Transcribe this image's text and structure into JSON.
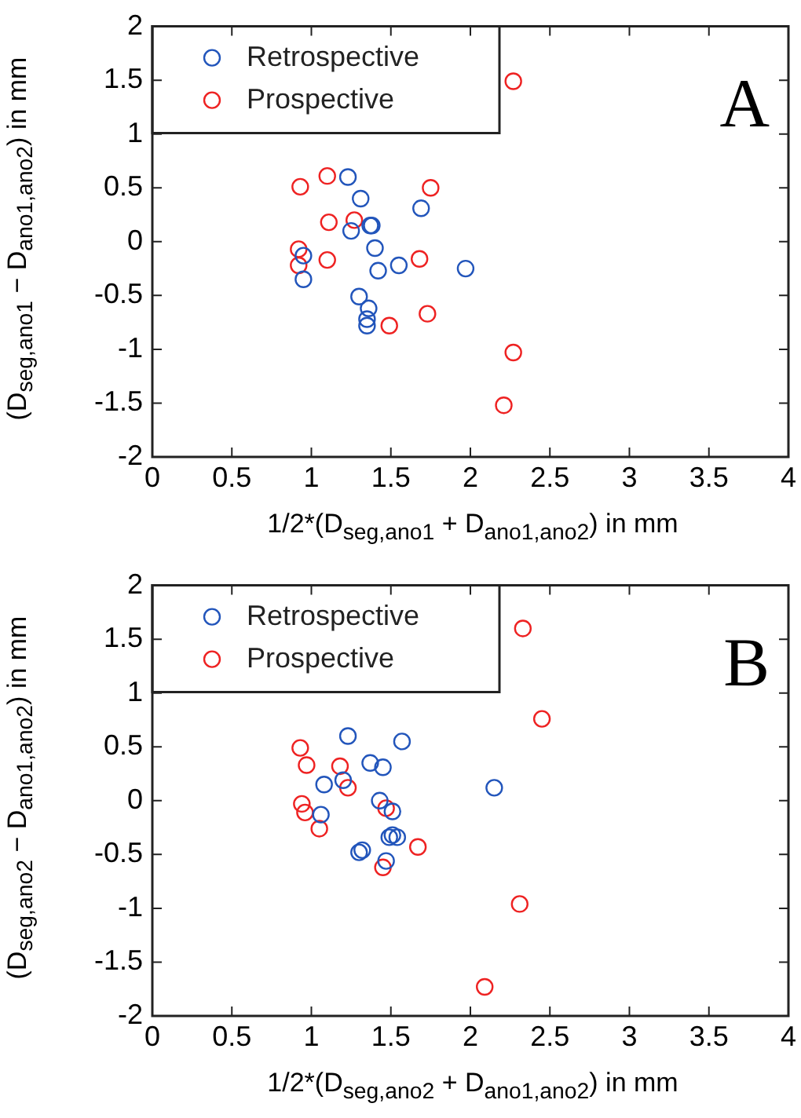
{
  "chart_data": [
    {
      "type": "scatter",
      "xlabel": "1/2*(D$_{seg,ano1}$ + D$_{ano1,ano2}$) in mm",
      "ylabel": "(D$_{seg,ano1}$ − D$_{ano1,ano2}$) in mm",
      "annotations": [
        "A"
      ],
      "legend": "top left",
      "marker": "circle",
      "grid": false,
      "xlim": [
        0,
        4
      ],
      "xticks": [
        0,
        0.5,
        1,
        1.5,
        2,
        2.5,
        3,
        3.5,
        4
      ],
      "ylim": [
        -2,
        2
      ],
      "yticks": [
        -2,
        -1.5,
        -1,
        -0.5,
        0,
        0.5,
        1,
        1.5,
        2
      ],
      "series": [
        {
          "name": "Retrospective",
          "color": "#2255bb",
          "x": [
            1.23,
            1.31,
            1.69,
            1.25,
            1.37,
            1.38,
            1.4,
            0.95,
            0.95,
            1.55,
            1.42,
            1.97,
            1.3,
            1.36,
            1.35,
            1.35
          ],
          "values": [
            0.6,
            0.4,
            0.31,
            0.1,
            0.15,
            0.15,
            -0.06,
            -0.13,
            -0.35,
            -0.22,
            -0.27,
            -0.25,
            -0.51,
            -0.62,
            -0.72,
            -0.78
          ]
        },
        {
          "name": "Prospective",
          "color": "#ee2222",
          "x": [
            2.27,
            0.93,
            1.1,
            1.75,
            1.11,
            1.27,
            0.92,
            0.92,
            1.1,
            1.68,
            1.49,
            1.73,
            2.27,
            2.21
          ],
          "values": [
            1.49,
            0.51,
            0.61,
            0.5,
            0.18,
            0.2,
            -0.07,
            -0.22,
            -0.17,
            -0.16,
            -0.78,
            -0.67,
            -1.03,
            -1.52
          ]
        }
      ]
    },
    {
      "type": "scatter",
      "xlabel": "1/2*(D$_{seg,ano2}$ + D$_{ano1,ano2}$) in mm",
      "ylabel": "(D$_{seg,ano2}$ − D$_{ano1,ano2}$) in mm",
      "annotations": [
        "B"
      ],
      "legend": "top left",
      "marker": "circle",
      "grid": false,
      "xlim": [
        0,
        4
      ],
      "xticks": [
        0,
        0.5,
        1,
        1.5,
        2,
        2.5,
        3,
        3.5,
        4
      ],
      "ylim": [
        -2,
        2
      ],
      "yticks": [
        -2,
        -1.5,
        -1,
        -0.5,
        0,
        0.5,
        1,
        1.5,
        2
      ],
      "series": [
        {
          "name": "Retrospective",
          "color": "#2255bb",
          "x": [
            1.23,
            1.57,
            1.37,
            1.45,
            1.08,
            1.2,
            2.15,
            1.43,
            1.51,
            1.06,
            1.51,
            1.49,
            1.54,
            1.3,
            1.32,
            1.47
          ],
          "values": [
            0.6,
            0.55,
            0.35,
            0.31,
            0.15,
            0.19,
            0.12,
            0.0,
            -0.1,
            -0.13,
            -0.32,
            -0.34,
            -0.34,
            -0.48,
            -0.46,
            -0.56
          ]
        },
        {
          "name": "Prospective",
          "color": "#ee2222",
          "x": [
            2.33,
            2.45,
            0.93,
            0.97,
            1.18,
            1.23,
            0.94,
            0.96,
            1.05,
            1.47,
            1.67,
            1.45,
            2.31,
            2.09
          ],
          "values": [
            1.6,
            0.76,
            0.49,
            0.33,
            0.32,
            0.12,
            -0.03,
            -0.11,
            -0.26,
            -0.07,
            -0.43,
            -0.62,
            -0.96,
            -1.73
          ]
        }
      ]
    }
  ]
}
